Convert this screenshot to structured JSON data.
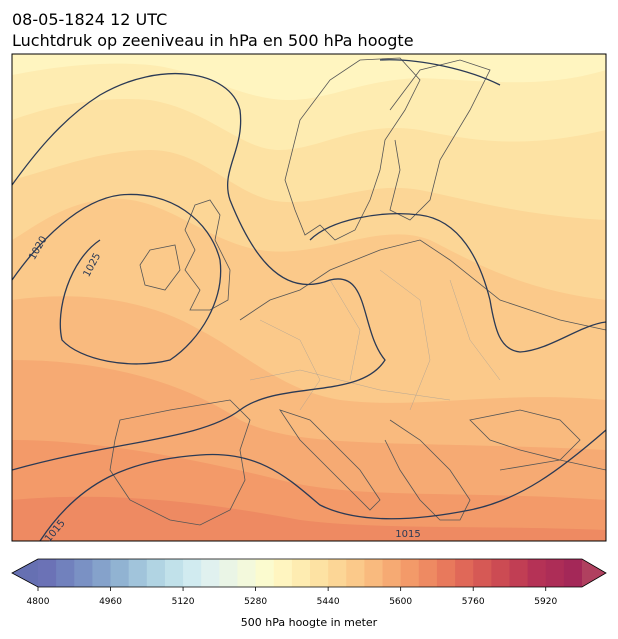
{
  "title": {
    "line1": "08-05-1824 12 UTC",
    "line2": "Luchtdruk op zeeniveau in hPa en 500 hPa hoogte"
  },
  "map": {
    "contour_labels": [
      1020,
      1025,
      1015,
      1015
    ]
  },
  "colorbar": {
    "lim": [
      4800,
      6000
    ],
    "ticks": [
      4800,
      4960,
      5120,
      5280,
      5440,
      5600,
      5760,
      5920
    ],
    "colors": [
      "#6b72b6",
      "#7181bd",
      "#7a91c4",
      "#85a2cb",
      "#91b3d2",
      "#a1c4db",
      "#b1d4e3",
      "#c1e1ea",
      "#d1ebf0",
      "#e0f1ef",
      "#eaf5e6",
      "#f3f9dc",
      "#fbfbcf",
      "#fff5c0",
      "#feecb1",
      "#fde2a3",
      "#fcd696",
      "#fbc98a",
      "#f9ba7e",
      "#f6aa73",
      "#f39a69",
      "#ee8a62",
      "#e8795c",
      "#e06858",
      "#d65955",
      "#cc4b53",
      "#c13e54",
      "#b53256",
      "#ad2d57",
      "#a42858"
    ],
    "under_color": "#6670b2",
    "over_color": "#b0405f",
    "label": "500 hPa hoogte in meter"
  }
}
